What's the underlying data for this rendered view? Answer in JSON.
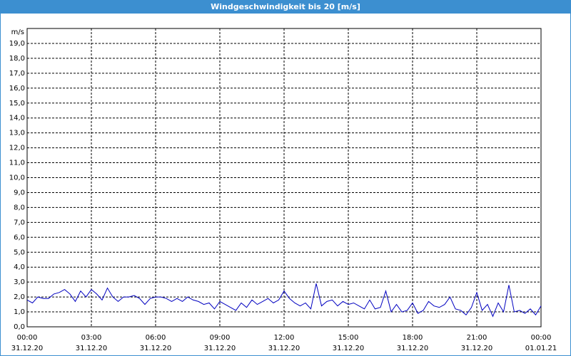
{
  "window_title": "Windgeschwindigkeit bis 20 [m/s]",
  "chart_data": {
    "type": "line",
    "y_label": "m/s",
    "color": "#0000c0",
    "grid": true,
    "ylim": [
      0,
      20
    ],
    "yticks": [
      {
        "value": 0,
        "label": "0,0"
      },
      {
        "value": 1,
        "label": "1,0"
      },
      {
        "value": 2,
        "label": "2,0"
      },
      {
        "value": 3,
        "label": "3,0"
      },
      {
        "value": 4,
        "label": "4,0"
      },
      {
        "value": 5,
        "label": "5,0"
      },
      {
        "value": 6,
        "label": "6,0"
      },
      {
        "value": 7,
        "label": "7,0"
      },
      {
        "value": 8,
        "label": "8,0"
      },
      {
        "value": 9,
        "label": "9,0"
      },
      {
        "value": 10,
        "label": "10,0"
      },
      {
        "value": 11,
        "label": "11,0"
      },
      {
        "value": 12,
        "label": "12,0"
      },
      {
        "value": 13,
        "label": "13,0"
      },
      {
        "value": 14,
        "label": "14,0"
      },
      {
        "value": 15,
        "label": "15,0"
      },
      {
        "value": 16,
        "label": "16,0"
      },
      {
        "value": 17,
        "label": "17,0"
      },
      {
        "value": 18,
        "label": "18,0"
      },
      {
        "value": 19,
        "label": "19,0"
      }
    ],
    "xlim": [
      0,
      24
    ],
    "xticks": [
      {
        "value": 0,
        "label": "00:00"
      },
      {
        "value": 3,
        "label": "03:00"
      },
      {
        "value": 6,
        "label": "06:00"
      },
      {
        "value": 9,
        "label": "09:00"
      },
      {
        "value": 12,
        "label": "12:00"
      },
      {
        "value": 15,
        "label": "15:00"
      },
      {
        "value": 18,
        "label": "18:00"
      },
      {
        "value": 21,
        "label": "21:00"
      },
      {
        "value": 24,
        "label": "00:00"
      }
    ],
    "xtick_dates": [
      "31.12.20",
      "31.12.20",
      "31.12.20",
      "31.12.20",
      "31.12.20",
      "31.12.20",
      "31.12.20",
      "31.12.20",
      "01.01.21"
    ],
    "x": [
      0,
      0.25,
      0.5,
      0.75,
      1,
      1.25,
      1.5,
      1.75,
      2,
      2.25,
      2.5,
      2.75,
      3,
      3.25,
      3.5,
      3.75,
      4,
      4.25,
      4.5,
      4.75,
      5,
      5.25,
      5.5,
      5.75,
      6,
      6.25,
      6.5,
      6.75,
      7,
      7.25,
      7.5,
      7.75,
      8,
      8.25,
      8.5,
      8.75,
      9,
      9.25,
      9.5,
      9.75,
      10,
      10.25,
      10.5,
      10.75,
      11,
      11.25,
      11.5,
      11.75,
      12,
      12.25,
      12.5,
      12.75,
      13,
      13.25,
      13.5,
      13.75,
      14,
      14.25,
      14.5,
      14.75,
      15,
      15.25,
      15.5,
      15.75,
      16,
      16.25,
      16.5,
      16.75,
      17,
      17.25,
      17.5,
      17.75,
      18,
      18.25,
      18.5,
      18.75,
      19,
      19.25,
      19.5,
      19.75,
      20,
      20.25,
      20.5,
      20.75,
      21,
      21.25,
      21.5,
      21.75,
      22,
      22.25,
      22.5,
      22.75,
      23,
      23.25,
      23.5,
      23.75,
      24
    ],
    "values": [
      1.8,
      1.6,
      2.0,
      1.9,
      1.9,
      2.2,
      2.3,
      2.5,
      2.2,
      1.7,
      2.4,
      2.0,
      2.5,
      2.2,
      1.8,
      2.6,
      2.0,
      1.7,
      2.0,
      2.0,
      2.1,
      1.9,
      1.5,
      1.9,
      2.0,
      2.0,
      1.9,
      1.7,
      1.9,
      1.7,
      2.0,
      1.8,
      1.7,
      1.5,
      1.6,
      1.2,
      1.7,
      1.5,
      1.3,
      1.1,
      1.6,
      1.3,
      1.8,
      1.5,
      1.7,
      1.9,
      1.6,
      1.8,
      2.4,
      1.9,
      1.6,
      1.4,
      1.6,
      1.2,
      2.9,
      1.4,
      1.7,
      1.8,
      1.4,
      1.7,
      1.5,
      1.6,
      1.4,
      1.2,
      1.8,
      1.2,
      1.3,
      2.4,
      1.0,
      1.5,
      1.0,
      1.1,
      1.6,
      0.9,
      1.1,
      1.7,
      1.4,
      1.3,
      1.5,
      2.0,
      1.2,
      1.1,
      0.8,
      1.3,
      2.3,
      1.1,
      1.5,
      0.7,
      1.6,
      1.0,
      2.8,
      1.0,
      1.1,
      0.9,
      1.2,
      0.8,
      1.4
    ]
  }
}
